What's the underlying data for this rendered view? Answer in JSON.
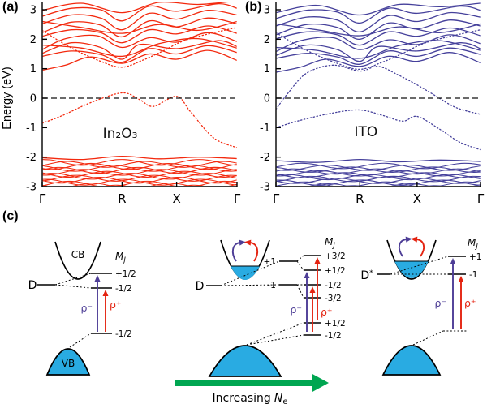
{
  "figure": {
    "a_letter": "(a)",
    "b_letter": "(b)",
    "c_letter": "(c)"
  },
  "colors": {
    "in2o3": "#f3290e",
    "ito": "#45409b",
    "cyan": "#29abe2",
    "purple": "#4d3d96",
    "red": "#e42310",
    "green": "#00a651"
  },
  "chart_data": [
    {
      "type": "line",
      "panel": "a",
      "title": "In₂O₃",
      "label": "In₂O₃",
      "label_pos": [
        0.4,
        -1.35
      ],
      "color": "#f3290e",
      "ylabel": "Energy (eV)",
      "ylim": [
        -3,
        3
      ],
      "yticks": [
        3,
        2,
        1,
        0,
        -1,
        -2,
        -3
      ],
      "xticks": [
        "Γ",
        "R",
        "X",
        "Γ"
      ],
      "tick_positions": [
        0,
        0.41,
        0.69,
        1
      ],
      "fermi_level": 0,
      "left_margin": 52,
      "bands": [
        {
          "dotted": true,
          "pts": [
            [
              0,
              -0.85
            ],
            [
              0.1,
              -0.6
            ],
            [
              0.25,
              -0.15
            ],
            [
              0.41,
              0.18
            ],
            [
              0.5,
              -0.05
            ],
            [
              0.57,
              -0.28
            ],
            [
              0.69,
              0.06
            ],
            [
              0.76,
              -0.45
            ],
            [
              0.88,
              -1.35
            ],
            [
              1,
              -1.68
            ]
          ]
        },
        {
          "pts": [
            [
              0,
              -2.02
            ],
            [
              0.2,
              -2.08
            ],
            [
              0.41,
              -1.97
            ],
            [
              0.6,
              -2.06
            ],
            [
              0.8,
              -2.0
            ],
            [
              1,
              -2.05
            ]
          ]
        },
        {
          "pts": [
            [
              0,
              0.95
            ],
            [
              0.12,
              1.12
            ],
            [
              0.25,
              1.4
            ],
            [
              0.41,
              1.18
            ],
            [
              0.55,
              1.5
            ],
            [
              0.69,
              1.32
            ],
            [
              0.85,
              1.62
            ],
            [
              1,
              1.28
            ]
          ]
        },
        {
          "pts": [
            [
              0,
              1.42
            ],
            [
              0.15,
              1.6
            ],
            [
              0.3,
              1.48
            ],
            [
              0.41,
              1.22
            ],
            [
              0.55,
              1.68
            ],
            [
              0.69,
              1.5
            ],
            [
              0.85,
              1.78
            ],
            [
              1,
              1.55
            ]
          ]
        },
        {
          "pts": [
            [
              0,
              1.52
            ],
            [
              0.15,
              1.88
            ],
            [
              0.3,
              1.72
            ],
            [
              0.41,
              1.32
            ],
            [
              0.5,
              1.82
            ],
            [
              0.69,
              1.68
            ],
            [
              0.9,
              1.95
            ],
            [
              1,
              1.75
            ]
          ]
        },
        {
          "pts": [
            [
              0,
              1.65
            ],
            [
              0.12,
              2.02
            ],
            [
              0.28,
              2.12
            ],
            [
              0.41,
              1.72
            ],
            [
              0.55,
              2.05
            ],
            [
              0.69,
              1.9
            ],
            [
              0.85,
              2.22
            ],
            [
              1,
              1.92
            ]
          ]
        },
        {
          "pts": [
            [
              0,
              2.1
            ],
            [
              0.15,
              2.32
            ],
            [
              0.3,
              2.22
            ],
            [
              0.41,
              1.88
            ],
            [
              0.55,
              2.32
            ],
            [
              0.69,
              2.18
            ],
            [
              0.85,
              2.45
            ],
            [
              1,
              2.2
            ]
          ]
        },
        {
          "pts": [
            [
              0,
              2.22
            ],
            [
              0.15,
              2.58
            ],
            [
              0.3,
              2.48
            ],
            [
              0.41,
              2.08
            ],
            [
              0.55,
              2.62
            ],
            [
              0.69,
              2.42
            ],
            [
              0.85,
              2.72
            ],
            [
              1,
              2.52
            ]
          ]
        },
        {
          "pts": [
            [
              0,
              2.52
            ],
            [
              0.15,
              2.82
            ],
            [
              0.3,
              2.72
            ],
            [
              0.41,
              2.32
            ],
            [
              0.55,
              2.88
            ],
            [
              0.69,
              2.68
            ],
            [
              0.85,
              2.98
            ],
            [
              1,
              2.82
            ]
          ]
        },
        {
          "pts": [
            [
              0,
              2.78
            ],
            [
              0.15,
              3.05
            ],
            [
              0.3,
              3.0
            ],
            [
              0.41,
              2.62
            ],
            [
              0.55,
              3.12
            ],
            [
              0.69,
              2.95
            ],
            [
              0.9,
              3.2
            ],
            [
              1,
              3.05
            ]
          ]
        },
        {
          "pts": [
            [
              0,
              2.98
            ],
            [
              0.2,
              3.22
            ],
            [
              0.41,
              2.9
            ],
            [
              0.6,
              3.25
            ],
            [
              0.8,
              3.18
            ],
            [
              1,
              3.3
            ]
          ]
        },
        {
          "pts": [
            [
              0,
              1.8
            ],
            [
              0.2,
              1.7
            ],
            [
              0.41,
              1.42
            ],
            [
              0.6,
              1.85
            ],
            [
              0.8,
              2.02
            ],
            [
              1,
              1.7
            ]
          ]
        },
        {
          "dotted": true,
          "pts": [
            [
              0,
              2.3
            ],
            [
              0.15,
              1.7
            ],
            [
              0.3,
              1.25
            ],
            [
              0.41,
              1.05
            ],
            [
              0.52,
              1.3
            ],
            [
              0.62,
              1.6
            ],
            [
              0.75,
              2.0
            ],
            [
              1,
              2.4
            ]
          ]
        },
        {
          "pts": [
            [
              0,
              2.6
            ],
            [
              0.2,
              2.4
            ],
            [
              0.41,
              2.2
            ],
            [
              0.6,
              2.5
            ],
            [
              0.8,
              2.3
            ],
            [
              1,
              2.6
            ]
          ]
        }
      ],
      "dense_valence": {
        "count": 15,
        "ymin": -3.12,
        "ymax": -2.18,
        "amplitude": 0.1,
        "waves": 2.5
      }
    },
    {
      "type": "line",
      "panel": "b",
      "title": "ITO",
      "label": "ITO",
      "label_pos": [
        0.44,
        -1.3
      ],
      "color": "#45409b",
      "ylabel": "Energy (eV)",
      "ylim": [
        -3,
        3
      ],
      "yticks": [
        3,
        2,
        1,
        0,
        -1,
        -2,
        -3
      ],
      "xticks": [
        "Γ",
        "R",
        "X",
        "Γ"
      ],
      "tick_positions": [
        0,
        0.41,
        0.69,
        1
      ],
      "fermi_level": 0,
      "left_margin": 40,
      "bands": [
        {
          "dotted": true,
          "pts": [
            [
              0,
              -1.0
            ],
            [
              0.12,
              -0.75
            ],
            [
              0.28,
              -0.5
            ],
            [
              0.41,
              -0.4
            ],
            [
              0.52,
              -0.58
            ],
            [
              0.62,
              -0.78
            ],
            [
              0.69,
              -0.62
            ],
            [
              0.8,
              -1.05
            ],
            [
              0.9,
              -1.5
            ],
            [
              1,
              -1.75
            ]
          ]
        },
        {
          "dotted": true,
          "pts": [
            [
              0,
              -0.38
            ],
            [
              0.06,
              0.18
            ],
            [
              0.15,
              0.85
            ],
            [
              0.28,
              1.12
            ],
            [
              0.41,
              0.92
            ],
            [
              0.5,
              1.08
            ],
            [
              0.6,
              0.78
            ],
            [
              0.69,
              0.45
            ],
            [
              0.78,
              0.08
            ],
            [
              0.88,
              -0.32
            ],
            [
              1,
              -0.55
            ]
          ]
        },
        {
          "pts": [
            [
              0,
              -2.12
            ],
            [
              0.2,
              -2.18
            ],
            [
              0.41,
              -2.08
            ],
            [
              0.6,
              -2.16
            ],
            [
              0.8,
              -2.1
            ],
            [
              1,
              -2.15
            ]
          ]
        },
        {
          "pts": [
            [
              0,
              0.88
            ],
            [
              0.12,
              1.05
            ],
            [
              0.25,
              1.32
            ],
            [
              0.41,
              1.08
            ],
            [
              0.55,
              1.42
            ],
            [
              0.69,
              1.25
            ],
            [
              0.85,
              1.55
            ],
            [
              1,
              1.2
            ]
          ]
        },
        {
          "pts": [
            [
              0,
              1.35
            ],
            [
              0.15,
              1.52
            ],
            [
              0.3,
              1.4
            ],
            [
              0.41,
              1.15
            ],
            [
              0.55,
              1.6
            ],
            [
              0.69,
              1.42
            ],
            [
              0.85,
              1.7
            ],
            [
              1,
              1.48
            ]
          ]
        },
        {
          "pts": [
            [
              0,
              1.45
            ],
            [
              0.15,
              1.8
            ],
            [
              0.3,
              1.65
            ],
            [
              0.41,
              1.25
            ],
            [
              0.5,
              1.75
            ],
            [
              0.69,
              1.6
            ],
            [
              0.9,
              1.88
            ],
            [
              1,
              1.68
            ]
          ]
        },
        {
          "pts": [
            [
              0,
              1.58
            ],
            [
              0.12,
              1.95
            ],
            [
              0.28,
              2.05
            ],
            [
              0.41,
              1.65
            ],
            [
              0.55,
              1.98
            ],
            [
              0.69,
              1.82
            ],
            [
              0.85,
              2.15
            ],
            [
              1,
              1.85
            ]
          ]
        },
        {
          "pts": [
            [
              0,
              2.02
            ],
            [
              0.15,
              2.25
            ],
            [
              0.3,
              2.15
            ],
            [
              0.41,
              1.8
            ],
            [
              0.55,
              2.25
            ],
            [
              0.69,
              2.1
            ],
            [
              0.85,
              2.38
            ],
            [
              1,
              2.12
            ]
          ]
        },
        {
          "pts": [
            [
              0,
              2.15
            ],
            [
              0.15,
              2.5
            ],
            [
              0.3,
              2.4
            ],
            [
              0.41,
              2.0
            ],
            [
              0.55,
              2.55
            ],
            [
              0.69,
              2.35
            ],
            [
              0.85,
              2.65
            ],
            [
              1,
              2.45
            ]
          ]
        },
        {
          "pts": [
            [
              0,
              2.45
            ],
            [
              0.15,
              2.75
            ],
            [
              0.3,
              2.65
            ],
            [
              0.41,
              2.25
            ],
            [
              0.55,
              2.8
            ],
            [
              0.69,
              2.6
            ],
            [
              0.85,
              2.9
            ],
            [
              1,
              2.75
            ]
          ]
        },
        {
          "pts": [
            [
              0,
              2.7
            ],
            [
              0.15,
              2.98
            ],
            [
              0.3,
              2.92
            ],
            [
              0.41,
              2.55
            ],
            [
              0.55,
              3.05
            ],
            [
              0.69,
              2.88
            ],
            [
              0.9,
              3.12
            ],
            [
              1,
              2.98
            ]
          ]
        },
        {
          "pts": [
            [
              0,
              2.9
            ],
            [
              0.2,
              3.15
            ],
            [
              0.41,
              2.82
            ],
            [
              0.6,
              3.18
            ],
            [
              0.8,
              3.1
            ],
            [
              1,
              3.22
            ]
          ]
        },
        {
          "pts": [
            [
              0,
              1.72
            ],
            [
              0.2,
              1.62
            ],
            [
              0.41,
              1.35
            ],
            [
              0.6,
              1.78
            ],
            [
              0.8,
              1.95
            ],
            [
              1,
              1.62
            ]
          ]
        },
        {
          "dotted": true,
          "pts": [
            [
              0,
              2.22
            ],
            [
              0.15,
              1.62
            ],
            [
              0.3,
              1.18
            ],
            [
              0.41,
              0.98
            ],
            [
              0.52,
              1.22
            ],
            [
              0.62,
              1.52
            ],
            [
              0.75,
              1.92
            ],
            [
              1,
              2.32
            ]
          ]
        },
        {
          "pts": [
            [
              0,
              2.52
            ],
            [
              0.2,
              2.32
            ],
            [
              0.41,
              2.12
            ],
            [
              0.6,
              2.42
            ],
            [
              0.8,
              2.22
            ],
            [
              1,
              2.52
            ]
          ]
        }
      ],
      "dense_valence": {
        "count": 14,
        "ymin": -3.12,
        "ymax": -2.3,
        "amplitude": 0.09,
        "waves": 2.5
      }
    }
  ],
  "panel_c": {
    "mj_base": "M",
    "mj_sub": "J",
    "rho_minus": "ρ⁻",
    "rho_plus": "ρ⁺",
    "d1": {
      "cb": "CB",
      "vb": "VB",
      "donor": "D",
      "split": [
        "+1/2",
        "-1/2"
      ],
      "ground": "-1/2"
    },
    "d2": {
      "donor": "D",
      "mid": [
        "+1",
        "-1"
      ],
      "split": [
        "+3/2",
        "+1/2",
        "-1/2",
        "-3/2"
      ],
      "ground": [
        "+1/2",
        "-1/2"
      ]
    },
    "d3": {
      "donor": "D",
      "star": "*",
      "split": [
        "+1",
        "-1"
      ]
    },
    "inc": {
      "prefix": "Increasing",
      "symbol": "N",
      "sub": "e"
    }
  }
}
